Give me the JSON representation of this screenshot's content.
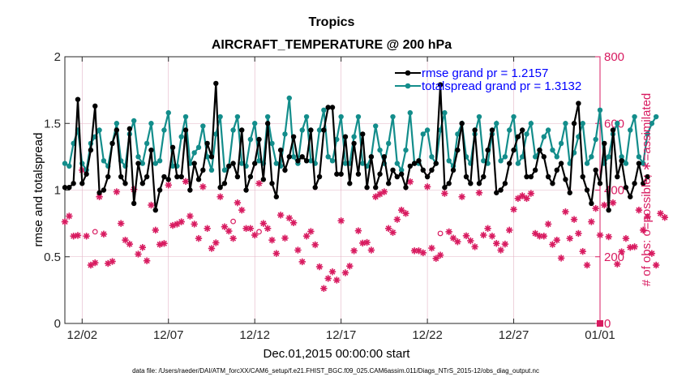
{
  "colors": {
    "rmse": "#000000",
    "spread": "#138d8b",
    "obs": "#d81b60",
    "legend_text": "#0000ff",
    "grid": "#e3b4c6"
  },
  "chart_data": {
    "type": "line",
    "title": "Tropics",
    "subtitle": "AIRCRAFT_TEMPERATURE @ 200 hPa",
    "xlabel": "Dec.01,2015 00:00:00 start",
    "ylabel": "rmse and totalspread",
    "ylabel_right": "# of obs: o=possible; ∗=assimilated",
    "footer": "data file: /Users/raeder/DAI/ATM_forcXX/CAM6_setup/f.e21.FHIST_BGC.f09_025.CAM6assim.011/Diags_NTrS_2015-12/obs_diag_output.nc",
    "xlim": [
      1,
      32
    ],
    "ylim": [
      0,
      2
    ],
    "ylim_right": [
      0,
      800
    ],
    "x_ticks": [
      {
        "value": 2,
        "label": "12/02"
      },
      {
        "value": 7,
        "label": "12/07"
      },
      {
        "value": 12,
        "label": "12/12"
      },
      {
        "value": 17,
        "label": "12/17"
      },
      {
        "value": 22,
        "label": "12/22"
      },
      {
        "value": 27,
        "label": "12/27"
      },
      {
        "value": 32,
        "label": "01/01"
      }
    ],
    "y_ticks": [
      {
        "value": 0,
        "label": "0"
      },
      {
        "value": 0.5,
        "label": "0.5"
      },
      {
        "value": 1,
        "label": "1"
      },
      {
        "value": 1.5,
        "label": "1.5"
      },
      {
        "value": 2,
        "label": "2"
      }
    ],
    "y_ticks_right": [
      {
        "value": 0,
        "label": "0"
      },
      {
        "value": 200,
        "label": "200"
      },
      {
        "value": 400,
        "label": "400"
      },
      {
        "value": 600,
        "label": "600"
      },
      {
        "value": 800,
        "label": "800"
      }
    ],
    "grid": true,
    "legend_location": "top-right",
    "legend": [
      "rmse grand pr = 1.2157",
      "totalspread grand pr = 1.3132"
    ],
    "x_start": 1.0,
    "x_step": 0.25,
    "series": [
      {
        "name": "rmse grand pr = 1.2157",
        "axis": "left",
        "values": [
          1.02,
          1.02,
          1.05,
          1.68,
          1.05,
          1.12,
          1.3,
          1.63,
          0.98,
          1.0,
          1.1,
          1.35,
          1.45,
          1.1,
          1.05,
          1.46,
          0.9,
          1.2,
          1.05,
          1.1,
          1.3,
          0.85,
          1.0,
          1.1,
          1.08,
          1.32,
          1.1,
          1.1,
          1.45,
          1.0,
          1.2,
          1.08,
          1.15,
          1.35,
          1.25,
          1.8,
          1.02,
          1.05,
          1.18,
          1.2,
          1.1,
          1.45,
          1.0,
          1.1,
          1.2,
          1.38,
          1.08,
          1.5,
          1.05,
          0.95,
          1.3,
          1.15,
          1.25,
          1.4,
          1.22,
          1.25,
          1.22,
          1.45,
          1.02,
          1.1,
          1.45,
          1.62,
          1.62,
          1.12,
          1.12,
          1.4,
          1.05,
          1.35,
          1.12,
          1.42,
          1.02,
          1.25,
          1.02,
          1.12,
          1.25,
          1.05,
          1.15,
          1.1,
          1.12,
          1.02,
          1.18,
          1.2,
          1.22,
          1.15,
          1.1,
          1.15,
          1.2,
          1.79,
          1.02,
          1.05,
          1.15,
          1.3,
          1.5,
          1.1,
          1.05,
          1.45,
          1.05,
          1.1,
          1.3,
          1.45,
          0.98,
          1.0,
          1.05,
          1.2,
          1.3,
          1.4,
          1.45,
          1.1,
          1.1,
          1.15,
          1.3,
          1.25,
          1.1,
          1.05,
          1.15,
          1.2,
          1.08,
          0.98,
          1.5,
          1.65,
          1.1,
          1.0,
          0.9,
          1.15,
          1.05,
          1.35,
          0.85,
          1.45,
          1.1,
          1.22,
          1.02,
          0.95,
          1.05,
          1.2,
          1.05,
          1.1
        ]
      },
      {
        "name": "totalspread grand pr = 1.3132",
        "axis": "left",
        "values": [
          1.2,
          1.18,
          1.35,
          1.45,
          1.2,
          1.15,
          1.35,
          1.4,
          1.45,
          1.22,
          1.18,
          1.35,
          1.5,
          1.22,
          1.18,
          1.42,
          1.52,
          1.25,
          1.2,
          1.35,
          1.5,
          1.2,
          1.22,
          1.45,
          1.58,
          1.18,
          1.18,
          1.4,
          1.55,
          1.2,
          1.28,
          1.32,
          1.48,
          1.25,
          1.15,
          1.42,
          1.55,
          1.15,
          1.18,
          1.45,
          1.55,
          1.2,
          1.18,
          1.38,
          1.5,
          1.22,
          1.2,
          1.55,
          1.35,
          1.2,
          1.18,
          1.42,
          1.69,
          1.25,
          1.2,
          1.45,
          1.55,
          1.22,
          1.2,
          1.45,
          1.6,
          1.25,
          1.22,
          1.38,
          1.55,
          1.2,
          1.2,
          1.4,
          1.55,
          1.2,
          1.18,
          1.25,
          1.48,
          1.3,
          1.2,
          1.35,
          1.55,
          1.2,
          1.15,
          1.3,
          1.58,
          1.2,
          1.2,
          1.42,
          1.45,
          1.25,
          1.2,
          1.45,
          1.58,
          1.22,
          1.18,
          1.42,
          1.5,
          1.25,
          1.2,
          1.42,
          1.55,
          1.22,
          1.2,
          1.42,
          1.5,
          1.22,
          1.25,
          1.45,
          1.55,
          1.2,
          1.25,
          1.42,
          1.5,
          1.25,
          1.3,
          1.4,
          1.45,
          1.3,
          1.25,
          1.35,
          1.5,
          1.2,
          1.28,
          1.4,
          1.5,
          1.2,
          1.25,
          1.38,
          1.6,
          1.2,
          1.25,
          1.42,
          1.5,
          1.25,
          1.2,
          1.45,
          1.55,
          1.25,
          1.2,
          1.42,
          1.5,
          1.55
        ]
      },
      {
        "name": "obs assimilated",
        "axis": "right",
        "values": [
          305,
          322,
          262,
          264,
          460,
          262,
          175,
          182,
          380,
          268,
          180,
          186,
          395,
          300,
          250,
          238,
          402,
          208,
          228,
          188,
          355,
          280,
          237,
          240,
          415,
          294,
          298,
          305,
          426,
          322,
          298,
          255,
          410,
          285,
          225,
          242,
          380,
          290,
          277,
          255,
          362,
          340,
          285,
          285,
          265,
          420,
          300,
          285,
          250,
          210,
          325,
          256,
          316,
          302,
          220,
          185,
          262,
          276,
          236,
          170,
          105,
          135,
          155,
          130,
          308,
          152,
          172,
          218,
          278,
          241,
          243,
          220,
          380,
          388,
          395,
          285,
          273,
          312,
          340,
          330,
          425,
          218,
          218,
          212,
          410,
          226,
          195,
          205,
          390,
          275,
          256,
          245,
          380,
          263,
          248,
          230,
          392,
          265,
          285,
          262,
          240,
          220,
          238,
          280,
          342,
          375,
          383,
          375,
          390,
          270,
          262,
          262,
          298,
          237,
          250,
          196,
          335,
          255,
          312,
          270,
          216,
          175,
          305,
          345,
          265,
          355,
          260,
          362,
          178,
          215,
          255,
          228,
          230,
          340,
          280,
          320,
          210,
          175,
          330,
          318
        ]
      },
      {
        "name": "obs possible",
        "axis": "right",
        "values": [
          null,
          null,
          null,
          null,
          null,
          null,
          null,
          275,
          null,
          null,
          null,
          null,
          null,
          null,
          null,
          null,
          null,
          null,
          null,
          null,
          null,
          null,
          null,
          null,
          null,
          null,
          null,
          null,
          null,
          null,
          null,
          null,
          null,
          null,
          null,
          null,
          null,
          null,
          null,
          306,
          null,
          null,
          null,
          null,
          null,
          275,
          null,
          null,
          null,
          null,
          null,
          null,
          null,
          null,
          null,
          null,
          null,
          null,
          null,
          null,
          null,
          null,
          null,
          null,
          null,
          null,
          null,
          null,
          null,
          null,
          null,
          null,
          null,
          null,
          null,
          null,
          null,
          null,
          null,
          null,
          null,
          null,
          null,
          null,
          null,
          null,
          null,
          270,
          null,
          null,
          null,
          null,
          null,
          null,
          null,
          null,
          null,
          null,
          null,
          null,
          null,
          null,
          null,
          null,
          null,
          null,
          null,
          null,
          null,
          null,
          null,
          null,
          null,
          null,
          null,
          null,
          null,
          null,
          null,
          null,
          null,
          null,
          null,
          null,
          null,
          null,
          null,
          null,
          null,
          null,
          null,
          null,
          null,
          null,
          null,
          null,
          null,
          null,
          null,
          null
        ]
      }
    ]
  }
}
